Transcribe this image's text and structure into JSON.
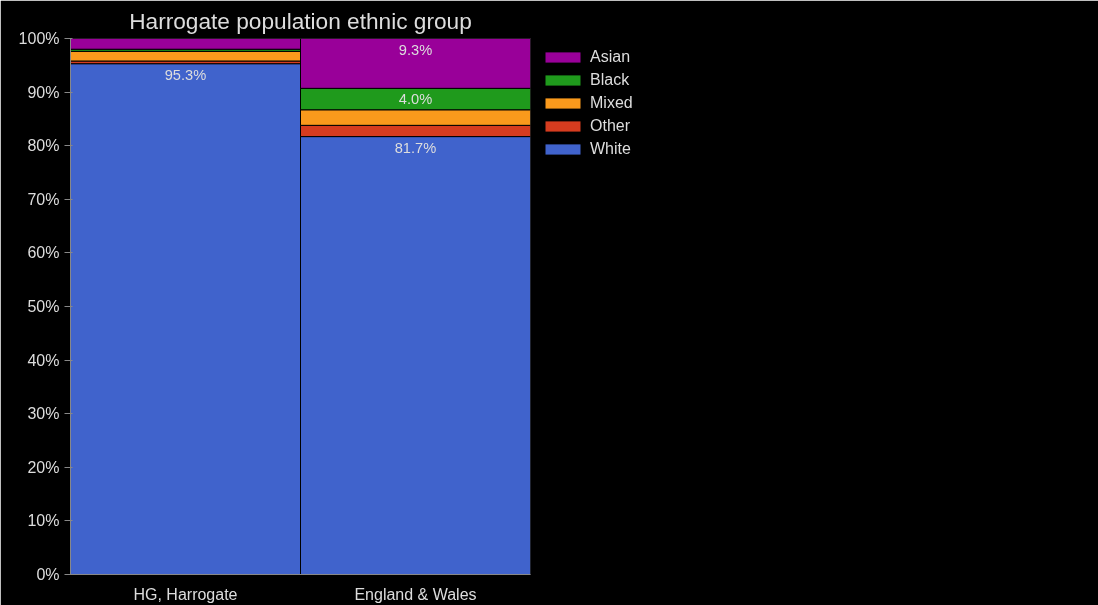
{
  "chart_data": {
    "type": "bar",
    "title": "Harrogate population ethnic group",
    "categories": [
      "HG, Harrogate",
      "England & Wales"
    ],
    "stacked": true,
    "series": [
      {
        "name": "White",
        "color": "#4063cc",
        "values": [
          95.3,
          81.7
        ],
        "value_labels": [
          "95.3%",
          "81.7%"
        ]
      },
      {
        "name": "Other",
        "color": "#d63c1f",
        "values": [
          0.5,
          2.1
        ],
        "value_labels": [
          null,
          null
        ]
      },
      {
        "name": "Mixed",
        "color": "#fa9a1c",
        "values": [
          1.8,
          2.9
        ],
        "value_labels": [
          null,
          null
        ]
      },
      {
        "name": "Black",
        "color": "#1f9a1c",
        "values": [
          0.4,
          4.0
        ],
        "value_labels": [
          null,
          "4.0%"
        ]
      },
      {
        "name": "Asian",
        "color": "#990099",
        "values": [
          2.0,
          9.3
        ],
        "value_labels": [
          null,
          "9.3%"
        ]
      }
    ],
    "ylim": [
      0,
      100
    ],
    "yticks": [
      {
        "value": 0,
        "label": "0%"
      },
      {
        "value": 10,
        "label": "10%"
      },
      {
        "value": 20,
        "label": "20%"
      },
      {
        "value": 30,
        "label": "30%"
      },
      {
        "value": 40,
        "label": "40%"
      },
      {
        "value": 50,
        "label": "50%"
      },
      {
        "value": 60,
        "label": "60%"
      },
      {
        "value": 70,
        "label": "70%"
      },
      {
        "value": 80,
        "label": "80%"
      },
      {
        "value": 90,
        "label": "90%"
      },
      {
        "value": 100,
        "label": "100%"
      }
    ],
    "grid": false,
    "legend": "top right"
  }
}
